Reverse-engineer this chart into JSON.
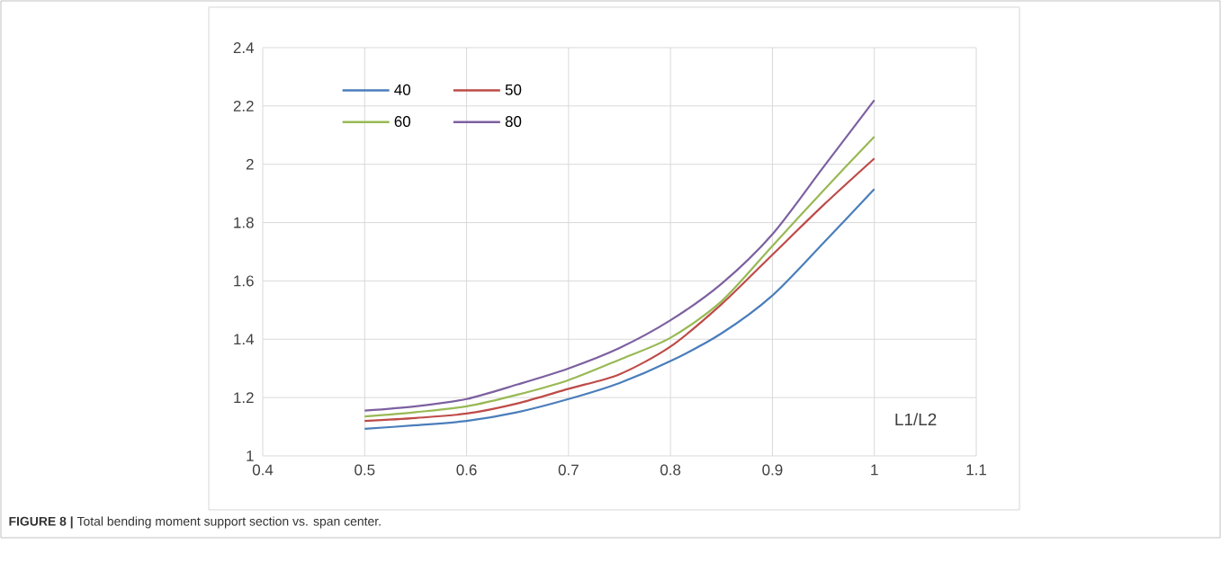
{
  "chart_data": {
    "type": "line",
    "xlabel": "L1/L2",
    "x": [
      0.5,
      0.55,
      0.6,
      0.65,
      0.7,
      0.75,
      0.8,
      0.85,
      0.9,
      0.95,
      1.0
    ],
    "series": [
      {
        "name": "40",
        "color": "#4a7ebb",
        "values": [
          1.093,
          1.105,
          1.12,
          1.15,
          1.195,
          1.25,
          1.325,
          1.42,
          1.55,
          1.73,
          1.915
        ]
      },
      {
        "name": "50",
        "color": "#be4b48",
        "values": [
          1.12,
          1.13,
          1.145,
          1.18,
          1.23,
          1.28,
          1.375,
          1.52,
          1.69,
          1.86,
          2.02
        ]
      },
      {
        "name": "60",
        "color": "#98b954",
        "values": [
          1.135,
          1.15,
          1.17,
          1.21,
          1.26,
          1.33,
          1.405,
          1.53,
          1.72,
          1.91,
          2.095
        ]
      },
      {
        "name": "80",
        "color": "#7d60a0",
        "values": [
          1.155,
          1.17,
          1.195,
          1.245,
          1.3,
          1.37,
          1.465,
          1.59,
          1.76,
          1.99,
          2.22
        ]
      }
    ],
    "xlim": [
      0.4,
      1.1
    ],
    "xticks": [
      0.4,
      0.5,
      0.6,
      0.7,
      0.8,
      0.9,
      1,
      1.1
    ],
    "ylim": [
      1,
      2.4
    ],
    "yticks": [
      1,
      1.2,
      1.4,
      1.6,
      1.8,
      2,
      2.2,
      2.4
    ],
    "grid": true,
    "legend": "top left",
    "marker": "none",
    "line_style": "solid",
    "annotations": [
      "**FIGURE 8 |** Total bending moment support section vs. span center."
    ]
  }
}
